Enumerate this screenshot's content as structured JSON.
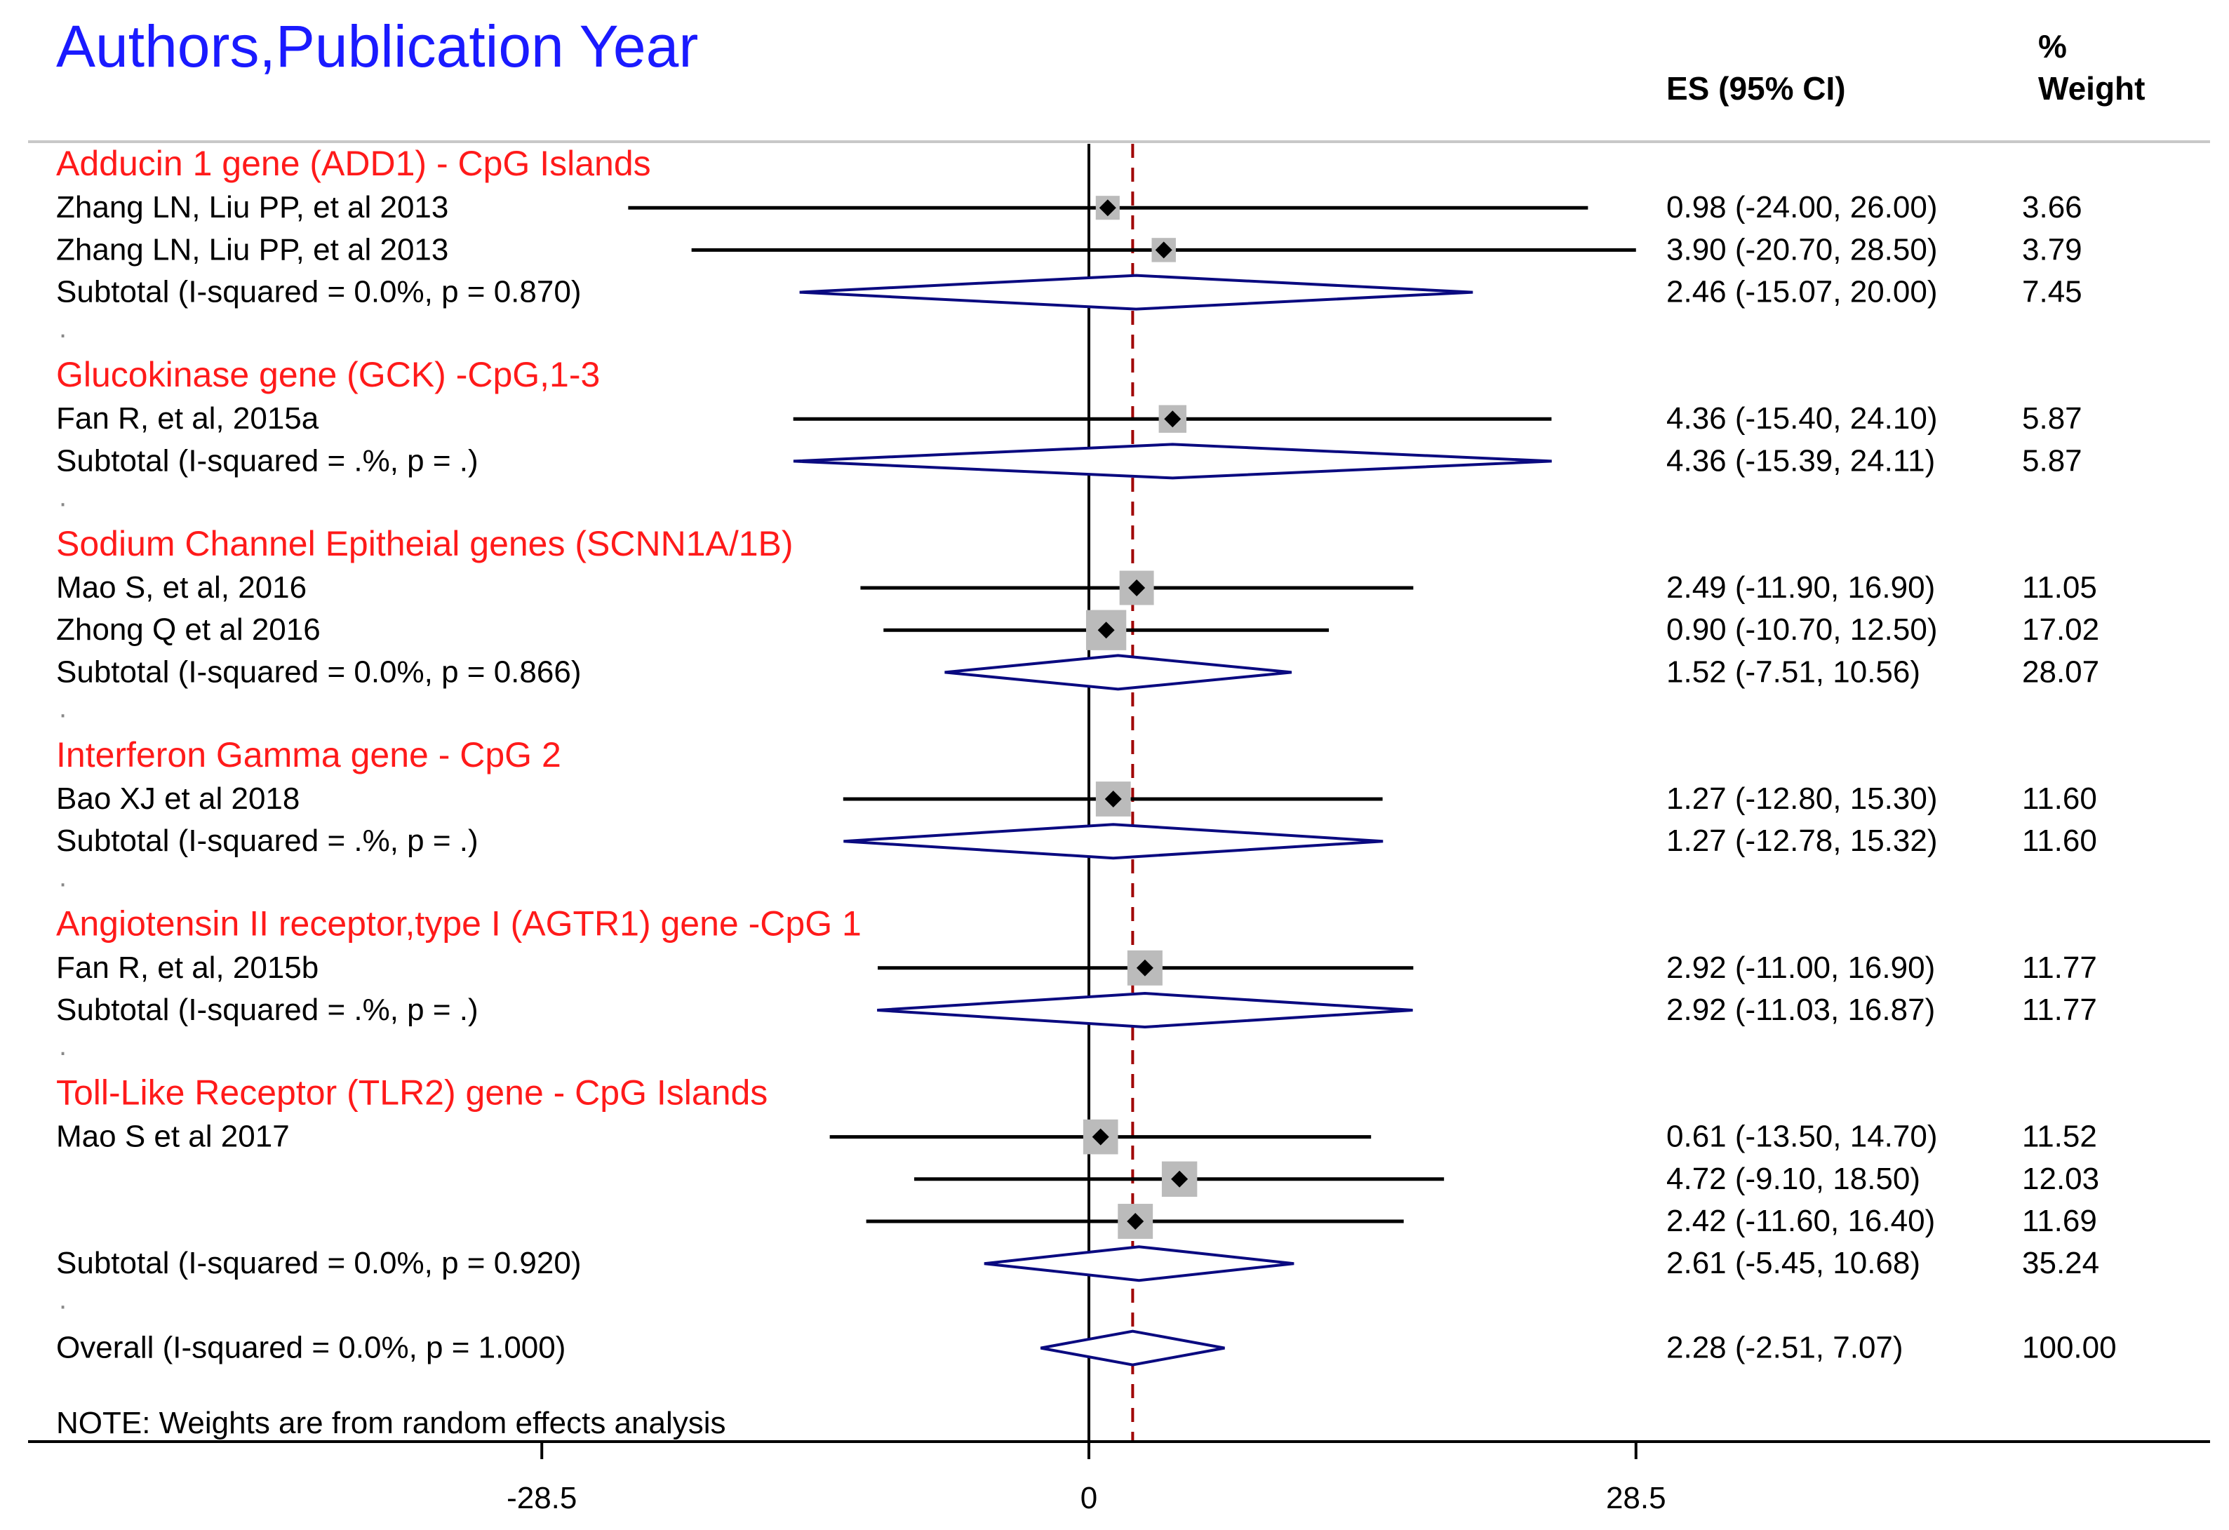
{
  "chart_data": {
    "type": "forest",
    "title": "Authors,Publication Year",
    "es_header": "ES (95% CI)",
    "weight_header": [
      "%",
      "Weight"
    ],
    "x_ticks": [
      -28.5,
      0,
      28.5
    ],
    "x_tick_labels": [
      "-28.5",
      "0",
      "28.5"
    ],
    "null_line": 0,
    "overall_line": 2.28,
    "note": "NOTE: Weights are from random effects analysis",
    "spacer": ".",
    "colors": {
      "title": "#1a1aff",
      "group": "#ff1a1a",
      "text": "#000000",
      "diamond": "#0a0a80",
      "overall_line": "#a00000",
      "box": "#bbbbbb"
    },
    "rows": [
      {
        "kind": "group",
        "label": "Adducin 1 gene (ADD1) - CpG Islands"
      },
      {
        "kind": "study",
        "label": "Zhang LN, Liu PP, et al 2013",
        "es": 0.98,
        "lo": -24.0,
        "hi": 26.0,
        "es_text": "0.98 (-24.00, 26.00)",
        "weight": 3.66,
        "weight_text": "3.66"
      },
      {
        "kind": "study",
        "label": "Zhang LN, Liu PP, et al 2013",
        "es": 3.9,
        "lo": -20.7,
        "hi": 28.5,
        "es_text": "3.90 (-20.70, 28.50)",
        "weight": 3.79,
        "weight_text": "3.79"
      },
      {
        "kind": "subtotal",
        "label": "Subtotal  (I-squared = 0.0%, p = 0.870)",
        "es": 2.46,
        "lo": -15.07,
        "hi": 20.0,
        "es_text": "2.46 (-15.07, 20.00)",
        "weight_text": "7.45"
      },
      {
        "kind": "spacer"
      },
      {
        "kind": "group",
        "label": "Glucokinase gene (GCK) -CpG,1-3"
      },
      {
        "kind": "study",
        "label": "Fan R, et al, 2015a",
        "es": 4.36,
        "lo": -15.4,
        "hi": 24.1,
        "es_text": "4.36 (-15.40, 24.10)",
        "weight": 5.87,
        "weight_text": "5.87"
      },
      {
        "kind": "subtotal",
        "label": "Subtotal  (I-squared = .%, p = .)",
        "es": 4.36,
        "lo": -15.39,
        "hi": 24.11,
        "es_text": "4.36 (-15.39, 24.11)",
        "weight_text": "5.87"
      },
      {
        "kind": "spacer"
      },
      {
        "kind": "group",
        "label": "Sodium Channel Epitheial  genes (SCNN1A/1B)"
      },
      {
        "kind": "study",
        "label": "Mao S, et al, 2016",
        "es": 2.49,
        "lo": -11.9,
        "hi": 16.9,
        "es_text": "2.49 (-11.90, 16.90)",
        "weight": 11.05,
        "weight_text": "11.05"
      },
      {
        "kind": "study",
        "label": "Zhong Q et al 2016",
        "es": 0.9,
        "lo": -10.7,
        "hi": 12.5,
        "es_text": "0.90 (-10.70, 12.50)",
        "weight": 17.02,
        "weight_text": "17.02"
      },
      {
        "kind": "subtotal",
        "label": "Subtotal  (I-squared = 0.0%, p = 0.866)",
        "es": 1.52,
        "lo": -7.51,
        "hi": 10.56,
        "es_text": "1.52 (-7.51, 10.56)",
        "weight_text": "28.07"
      },
      {
        "kind": "spacer"
      },
      {
        "kind": "group",
        "label": "Interferon Gamma gene - CpG 2"
      },
      {
        "kind": "study",
        "label": "Bao XJ et al 2018",
        "es": 1.27,
        "lo": -12.8,
        "hi": 15.3,
        "es_text": "1.27 (-12.80, 15.30)",
        "weight": 11.6,
        "weight_text": "11.60"
      },
      {
        "kind": "subtotal",
        "label": "Subtotal  (I-squared = .%, p = .)",
        "es": 1.27,
        "lo": -12.78,
        "hi": 15.32,
        "es_text": "1.27 (-12.78, 15.32)",
        "weight_text": "11.60"
      },
      {
        "kind": "spacer"
      },
      {
        "kind": "group",
        "label": "Angiotensin II receptor,type I (AGTR1) gene -CpG 1"
      },
      {
        "kind": "study",
        "label": "Fan R, et al, 2015b",
        "es": 2.92,
        "lo": -11.0,
        "hi": 16.9,
        "es_text": "2.92 (-11.00, 16.90)",
        "weight": 11.77,
        "weight_text": "11.77"
      },
      {
        "kind": "subtotal",
        "label": "Subtotal  (I-squared = .%, p = .)",
        "es": 2.92,
        "lo": -11.03,
        "hi": 16.87,
        "es_text": "2.92 (-11.03, 16.87)",
        "weight_text": "11.77"
      },
      {
        "kind": "spacer"
      },
      {
        "kind": "group",
        "label": "Toll-Like Receptor (TLR2) gene - CpG Islands"
      },
      {
        "kind": "study",
        "label": "Mao S et al 2017",
        "es": 0.61,
        "lo": -13.5,
        "hi": 14.7,
        "es_text": "0.61 (-13.50, 14.70)",
        "weight": 11.52,
        "weight_text": "11.52"
      },
      {
        "kind": "study",
        "label": "",
        "es": 4.72,
        "lo": -9.1,
        "hi": 18.5,
        "es_text": "4.72 (-9.10, 18.50)",
        "weight": 12.03,
        "weight_text": "12.03"
      },
      {
        "kind": "study",
        "label": "",
        "es": 2.42,
        "lo": -11.6,
        "hi": 16.4,
        "es_text": "2.42 (-11.60, 16.40)",
        "weight": 11.69,
        "weight_text": "11.69"
      },
      {
        "kind": "subtotal",
        "label": "Subtotal  (I-squared = 0.0%, p = 0.920)",
        "es": 2.61,
        "lo": -5.45,
        "hi": 10.68,
        "es_text": "2.61 (-5.45, 10.68)",
        "weight_text": "35.24"
      },
      {
        "kind": "spacer"
      },
      {
        "kind": "overall",
        "label": "Overall  (I-squared = 0.0%, p = 1.000)",
        "es": 2.28,
        "lo": -2.51,
        "hi": 7.07,
        "es_text": "2.28 (-2.51, 7.07)",
        "weight_text": "100.00"
      }
    ]
  }
}
